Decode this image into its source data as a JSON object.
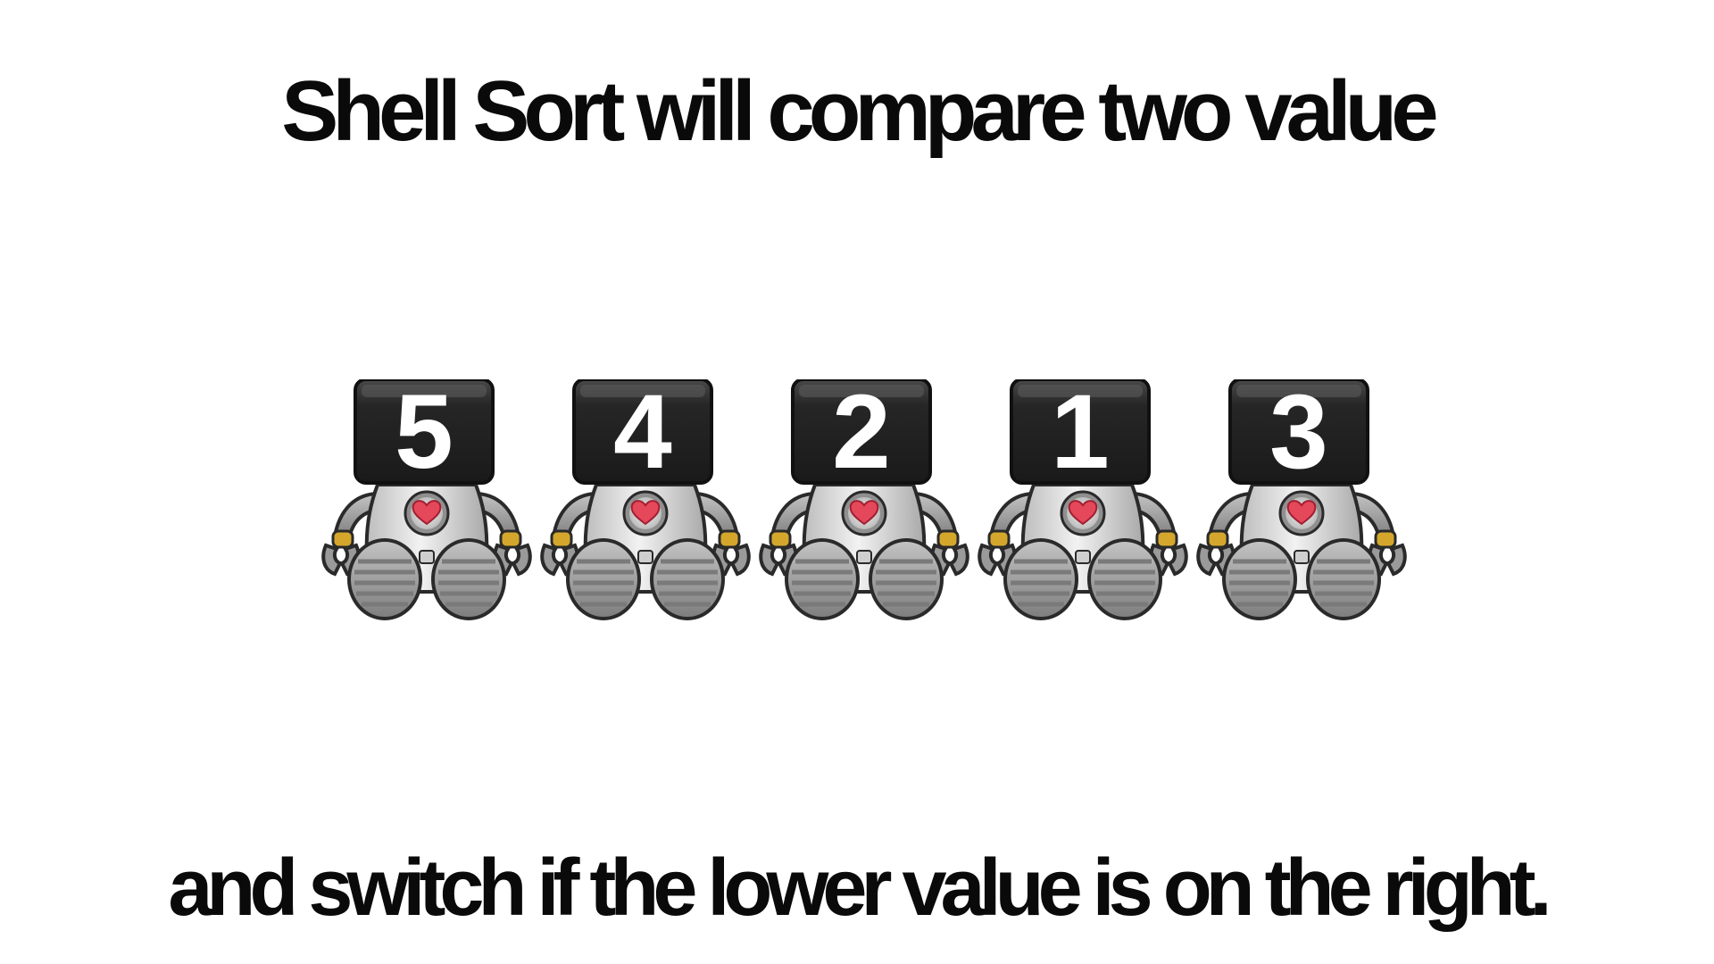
{
  "slide": {
    "title": "Shell Sort will compare two value",
    "subtitle": "and switch if the lower value is on the right."
  },
  "robots": [
    {
      "value": "5"
    },
    {
      "value": "4"
    },
    {
      "value": "2"
    },
    {
      "value": "1"
    },
    {
      "value": "3"
    }
  ],
  "colors": {
    "text": "#0a0a0a",
    "screen": "#222222",
    "body": "#dcdcdc",
    "limb": "#9a9a9a",
    "outline": "#2a2a2a",
    "heart": "#e5485a",
    "wrist": "#d4a72c"
  },
  "icons": [
    "robot-icon",
    "heart-icon"
  ]
}
